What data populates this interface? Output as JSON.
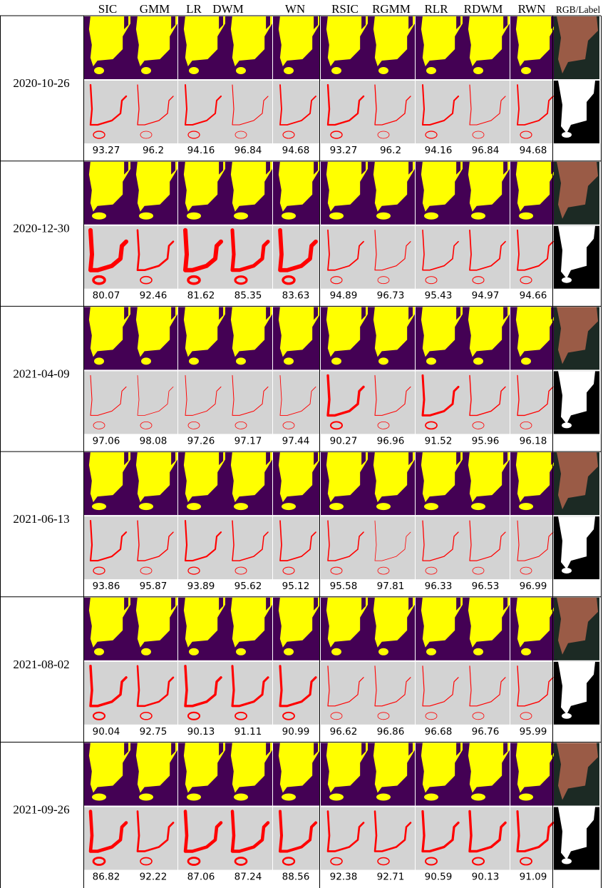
{
  "columns": [
    "SIC",
    "GMM",
    "LR",
    "DWM",
    "WN",
    "RSIC",
    "RGMM",
    "RLR",
    "RDWM",
    "RWN",
    "RGB/Label"
  ],
  "rows": [
    {
      "date": "2020-10-26",
      "scores": [
        "93.27",
        "96.2",
        "94.16",
        "96.84",
        "94.68",
        "93.27",
        "96.2",
        "94.16",
        "96.84",
        "94.68"
      ]
    },
    {
      "date": "2020-12-30",
      "scores": [
        "80.07",
        "92.46",
        "81.62",
        "85.35",
        "83.63",
        "94.89",
        "96.73",
        "95.43",
        "94.97",
        "94.66"
      ]
    },
    {
      "date": "2021-04-09",
      "scores": [
        "97.06",
        "98.08",
        "97.26",
        "97.17",
        "97.44",
        "90.27",
        "96.96",
        "91.52",
        "95.96",
        "96.18"
      ]
    },
    {
      "date": "2021-06-13",
      "scores": [
        "93.86",
        "95.87",
        "93.89",
        "95.62",
        "95.12",
        "95.58",
        "97.81",
        "96.33",
        "96.53",
        "96.99"
      ]
    },
    {
      "date": "2021-08-02",
      "scores": [
        "90.04",
        "92.75",
        "90.13",
        "91.11",
        "90.99",
        "96.62",
        "96.86",
        "96.68",
        "96.76",
        "95.99"
      ]
    },
    {
      "date": "2021-09-26",
      "scores": [
        "86.82",
        "92.22",
        "87.06",
        "87.24",
        "88.56",
        "92.38",
        "92.71",
        "90.59",
        "90.13",
        "91.09"
      ]
    }
  ],
  "colors": {
    "water": "#440154",
    "land": "#ffff00",
    "error_bg": "#d3d3d3",
    "error": "#ff0000",
    "label_fg": "#ffffff",
    "label_bg": "#000000",
    "rgb_bg": "#1c2a24",
    "rgb_fg": "#a8614a"
  }
}
